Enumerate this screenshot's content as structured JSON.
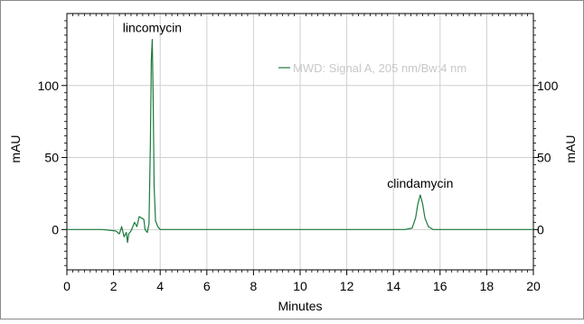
{
  "chart_data": {
    "type": "line",
    "xlabel": "Minutes",
    "ylabel_left": "mAU",
    "ylabel_right": "mAU",
    "xlim": [
      0,
      20
    ],
    "ylim": [
      -28,
      150
    ],
    "x_ticks": [
      "0",
      "2",
      "4",
      "6",
      "8",
      "10",
      "12",
      "14",
      "16",
      "18",
      "20"
    ],
    "x_tick_values": [
      0,
      2,
      4,
      6,
      8,
      10,
      12,
      14,
      16,
      18,
      20
    ],
    "y_ticks_left": [
      "0",
      "50",
      "100"
    ],
    "y_ticks_right": [
      "0",
      "50",
      "100"
    ],
    "y_tick_values": [
      0,
      50,
      100
    ],
    "grid": true,
    "legend": {
      "position": "top-right",
      "entries": [
        "MWD: Signal A, 205 nm/Bw:4 nm"
      ]
    },
    "line_color": "#1a7a3c",
    "series": [
      {
        "name": "MWD: Signal A, 205 nm/Bw:4 nm",
        "x": [
          0,
          1.5,
          2.1,
          2.25,
          2.35,
          2.45,
          2.55,
          2.6,
          2.65,
          2.75,
          2.9,
          3.0,
          3.1,
          3.2,
          3.3,
          3.35,
          3.45,
          3.52,
          3.58,
          3.62,
          3.66,
          3.7,
          3.74,
          3.8,
          3.9,
          4.0,
          4.3,
          5,
          6,
          7,
          8,
          9,
          10,
          11,
          12,
          13,
          14,
          14.5,
          14.8,
          14.95,
          15.05,
          15.15,
          15.25,
          15.35,
          15.5,
          15.7,
          16.0,
          17,
          18,
          19,
          20
        ],
        "y": [
          0,
          0,
          -1,
          -3,
          2,
          -5,
          -2,
          -9,
          -3,
          -1,
          5,
          2,
          9,
          8,
          7,
          0,
          -2,
          4,
          60,
          118,
          132,
          90,
          30,
          6,
          2,
          0,
          0,
          0,
          0,
          0,
          0,
          0,
          0,
          0,
          0,
          0,
          0,
          0,
          1,
          8,
          18,
          24,
          18,
          8,
          2,
          0,
          0,
          0,
          0,
          0,
          0
        ]
      }
    ],
    "annotations": [
      {
        "text": "lincomycin",
        "x": 3.66,
        "y": 132
      },
      {
        "text": "clindamycin",
        "x": 15.15,
        "y": 24
      }
    ]
  }
}
